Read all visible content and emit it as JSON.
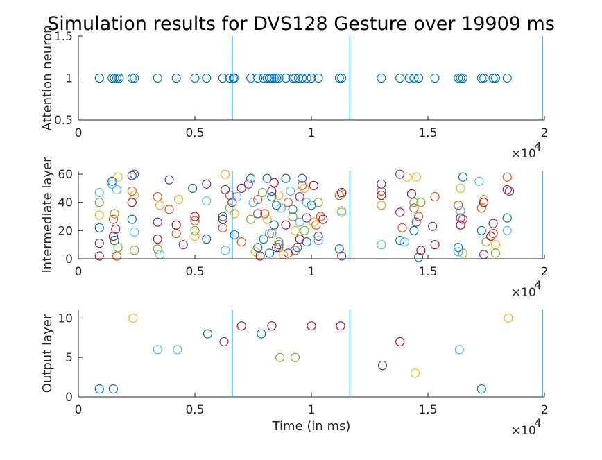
{
  "chart_data": [
    {
      "type": "scatter",
      "title": "Simulation results for DVS128 Gesture over 19909 ms",
      "xlabel": "",
      "ylabel": "Attention neuron",
      "xlim": [
        0,
        20000
      ],
      "ylim": [
        0.5,
        1.5
      ],
      "xticks": [
        "0",
        "0.5",
        "1",
        "1.5",
        "2"
      ],
      "yticks": [
        "0.5",
        "1",
        "1.5"
      ],
      "x_exponent": "×10",
      "x_exponent_power": "4",
      "vlines": [
        6600,
        11650,
        19909
      ],
      "series": [
        {
          "color": "#0072BD",
          "x": [
            900,
            1450,
            1550,
            1650,
            1750,
            2300,
            2400,
            3400,
            4200,
            5000,
            5500,
            6200,
            6500,
            6650,
            6700,
            7400,
            7700,
            7950,
            8100,
            8200,
            8300,
            8400,
            8500,
            8600,
            8900,
            9200,
            9300,
            9450,
            9600,
            9800,
            10000,
            10300,
            11200,
            11300,
            13000,
            13800,
            14200,
            14400,
            14600,
            15300,
            16300,
            16400,
            16500,
            17300,
            17400,
            17800,
            17900,
            18400
          ],
          "y": [
            1,
            1,
            1,
            1,
            1,
            1,
            1,
            1,
            1,
            1,
            1,
            1,
            1,
            1,
            1,
            1,
            1,
            1,
            1,
            1,
            1,
            1,
            1,
            1,
            1,
            1,
            1,
            1,
            1,
            1,
            1,
            1,
            1,
            1,
            1,
            1,
            1,
            1,
            1,
            1,
            1,
            1,
            1,
            1,
            1,
            1,
            1,
            1
          ]
        }
      ]
    },
    {
      "type": "scatter",
      "title": "",
      "xlabel": "",
      "ylabel": "Intermediate layer",
      "xlim": [
        0,
        20000
      ],
      "ylim": [
        0,
        62
      ],
      "xticks": [
        "0",
        "0.5",
        "1",
        "1.5",
        "2"
      ],
      "yticks": [
        "0",
        "20",
        "40",
        "60"
      ],
      "x_exponent": "×10",
      "x_exponent_power": "4",
      "vlines": [
        6600,
        11650,
        19909
      ],
      "series": [
        {
          "color": "#0072BD",
          "x": [
            900,
            1450,
            1550,
            2300,
            2400,
            4900,
            5500,
            6200,
            6700,
            7400,
            7700,
            7950,
            8100,
            8200,
            8300,
            8400,
            8500,
            8600,
            8900,
            9200,
            9400,
            9600,
            9800,
            10000,
            11200,
            11300,
            13000,
            13800,
            14400,
            14600,
            16300,
            16500,
            17300,
            18400
          ],
          "y": [
            22,
            55,
            13,
            28,
            60,
            50,
            14,
            30,
            17,
            57,
            8,
            14,
            57,
            4,
            44,
            24,
            38,
            10,
            57,
            35,
            8,
            57,
            12,
            38,
            7,
            47,
            38,
            13,
            20,
            1,
            8,
            58,
            20,
            29
          ]
        },
        {
          "color": "#D95319",
          "x": [
            1500,
            1650,
            2300,
            3400,
            3900,
            4200,
            5000,
            6200,
            6500,
            7000,
            7700,
            8000,
            8300,
            8600,
            9000,
            9300,
            9600,
            10200,
            10400,
            11200,
            13000,
            13900,
            14400,
            14600,
            15300,
            16300,
            16500,
            17300,
            17800,
            18400
          ],
          "y": [
            28,
            2,
            48,
            44,
            35,
            18,
            27,
            22,
            45,
            12,
            42,
            32,
            18,
            8,
            40,
            6,
            52,
            24,
            30,
            45,
            48,
            22,
            36,
            30,
            44,
            38,
            28,
            36,
            18,
            58
          ]
        },
        {
          "color": "#EDB120",
          "x": [
            900,
            1700,
            2400,
            3500,
            4300,
            5000,
            6300,
            6700,
            7600,
            8100,
            8600,
            8800,
            9300,
            9700,
            10100,
            11300,
            13000,
            14100,
            14500,
            16400,
            17400,
            17900
          ],
          "y": [
            31,
            58,
            45,
            38,
            42,
            16,
            60,
            32,
            5,
            28,
            45,
            3,
            20,
            50,
            26,
            34,
            38,
            58,
            58,
            50,
            42,
            10
          ]
        },
        {
          "color": "#7E2F8E",
          "x": [
            900,
            1600,
            2300,
            3400,
            3900,
            4500,
            5500,
            6300,
            6600,
            7300,
            7700,
            8300,
            8500,
            9000,
            9500,
            9800,
            10300,
            11300,
            13000,
            13800,
            14500,
            15200,
            16400,
            17400,
            17800,
            18500
          ],
          "y": [
            11,
            21,
            59,
            26,
            56,
            10,
            53,
            49,
            40,
            53,
            32,
            48,
            8,
            4,
            44,
            29,
            16,
            2,
            53,
            60,
            26,
            23,
            29,
            3,
            25,
            48
          ]
        },
        {
          "color": "#77AC30",
          "x": [
            900,
            1550,
            1700,
            2400,
            3400,
            5000,
            6500,
            7400,
            7900,
            8600,
            9200,
            9700,
            10300,
            11300,
            14400,
            14700,
            16500,
            17500,
            17900
          ],
          "y": [
            40,
            32,
            8,
            6,
            7,
            20,
            36,
            28,
            47,
            12,
            30,
            20,
            40,
            46,
            40,
            40,
            4,
            12,
            4
          ]
        },
        {
          "color": "#4DBEEE",
          "x": [
            900,
            1450,
            1650,
            2400,
            3500,
            5500,
            6300,
            6800,
            7500,
            8200,
            8700,
            9100,
            9500,
            9800,
            10300,
            11300,
            13000,
            14000,
            16300,
            16400,
            17200,
            18400
          ],
          "y": [
            47,
            53,
            49,
            19,
            3,
            41,
            6,
            44,
            40,
            18,
            36,
            48,
            26,
            40,
            13,
            33,
            10,
            12,
            5,
            34,
            55,
            20
          ]
        },
        {
          "color": "#A2142F",
          "x": [
            900,
            1500,
            2300,
            3400,
            4200,
            5000,
            6200,
            7000,
            7800,
            8400,
            8900,
            9500,
            10100,
            10500,
            11300,
            13000,
            13800,
            14300,
            14700,
            15300,
            16400,
            17400,
            17700,
            18400
          ],
          "y": [
            2,
            16,
            40,
            14,
            24,
            30,
            28,
            50,
            2,
            54,
            24,
            14,
            52,
            28,
            47,
            45,
            33,
            46,
            6,
            10,
            24,
            40,
            16,
            49
          ]
        }
      ]
    },
    {
      "type": "scatter",
      "title": "",
      "xlabel": "Time (in ms)",
      "ylabel": "Output layer",
      "xlim": [
        0,
        20000
      ],
      "ylim": [
        0,
        11
      ],
      "xticks": [
        "0",
        "0.5",
        "1",
        "1.5",
        "2"
      ],
      "yticks": [
        "0",
        "5",
        "10"
      ],
      "x_exponent": "×10",
      "x_exponent_power": "4",
      "vlines": [
        6600,
        11650,
        19909
      ],
      "series": [
        {
          "color": "#0072BD",
          "x": [
            900,
            1500,
            5550,
            7850,
            17300
          ],
          "y": [
            1,
            1,
            8,
            8,
            1
          ]
        },
        {
          "color": "#EDB120",
          "x": [
            2350,
            14450,
            18450
          ],
          "y": [
            10,
            3,
            10
          ]
        },
        {
          "color": "#4DBEEE",
          "x": [
            3400,
            4250,
            16350
          ],
          "y": [
            6,
            6,
            6
          ]
        },
        {
          "color": "#7E2F8E",
          "x": [
            6250,
            13050
          ],
          "y": [
            7,
            4
          ]
        },
        {
          "color": "#A2142F",
          "x": [
            7000,
            8300,
            10000,
            11250,
            13800
          ],
          "y": [
            9,
            9,
            9,
            9,
            7
          ]
        },
        {
          "color": "#77AC30",
          "x": [
            8650,
            9300
          ],
          "y": [
            5,
            5
          ]
        }
      ]
    }
  ]
}
